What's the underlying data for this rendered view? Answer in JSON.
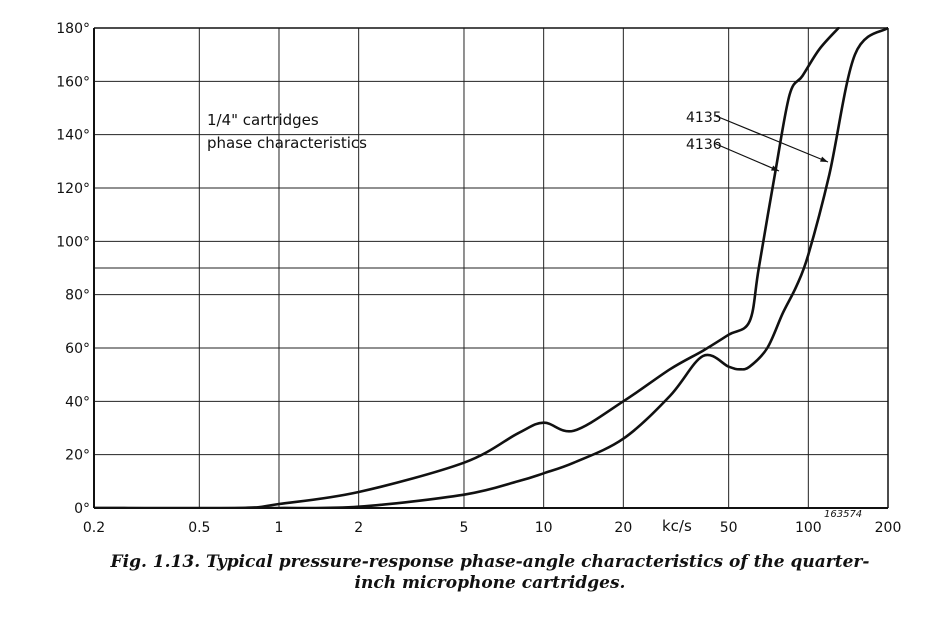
{
  "chart_data": {
    "type": "line",
    "x_scale": "log",
    "xlim": [
      0.2,
      200
    ],
    "ylim": [
      0,
      180
    ],
    "x_ticks": [
      0.2,
      0.5,
      1,
      2,
      5,
      10,
      20,
      50,
      100,
      200
    ],
    "x_tick_labels": [
      "0.2",
      "0.5",
      "1",
      "2",
      "5",
      "10",
      "20",
      "50",
      "100",
      "200"
    ],
    "x_unit_label": "kc/s",
    "y_ticks": [
      0,
      20,
      40,
      60,
      80,
      100,
      120,
      140,
      160,
      180
    ],
    "y_tick_labels": [
      "0°",
      "20°",
      "40°",
      "60°",
      "80°",
      "100°",
      "120°",
      "140°",
      "160°",
      "180°"
    ],
    "extra_grid_y": [
      90
    ],
    "grid": true,
    "annotation_lines": [
      "1/4\" cartridges",
      "phase characteristics"
    ],
    "figure_number": "163574",
    "series": [
      {
        "name": "4135",
        "x": [
          0.2,
          0.7,
          1,
          2,
          5,
          8,
          10,
          13,
          20,
          30,
          40,
          50,
          55,
          60,
          70,
          80,
          90,
          100,
          120,
          150,
          200
        ],
        "y": [
          0,
          0,
          0,
          0.5,
          5,
          10,
          13,
          17,
          26,
          42,
          57,
          53,
          52,
          53,
          60,
          73,
          83,
          95,
          125,
          170,
          180
        ]
      },
      {
        "name": "4136",
        "x": [
          0.2,
          0.7,
          1,
          2,
          5,
          8,
          10,
          13,
          20,
          30,
          40,
          50,
          60,
          65,
          75,
          85,
          95,
          110,
          130
        ],
        "y": [
          0,
          0,
          1.5,
          6,
          17,
          28,
          32,
          29,
          40,
          52,
          59,
          65,
          70,
          90,
          126,
          155,
          162,
          172,
          180
        ]
      }
    ],
    "series_label_order": [
      "4135",
      "4136"
    ]
  },
  "caption": {
    "line1": "Fig. 1.13.  Typical pressure-response phase-angle characteristics of the quarter-",
    "line2": "inch microphone cartridges."
  }
}
